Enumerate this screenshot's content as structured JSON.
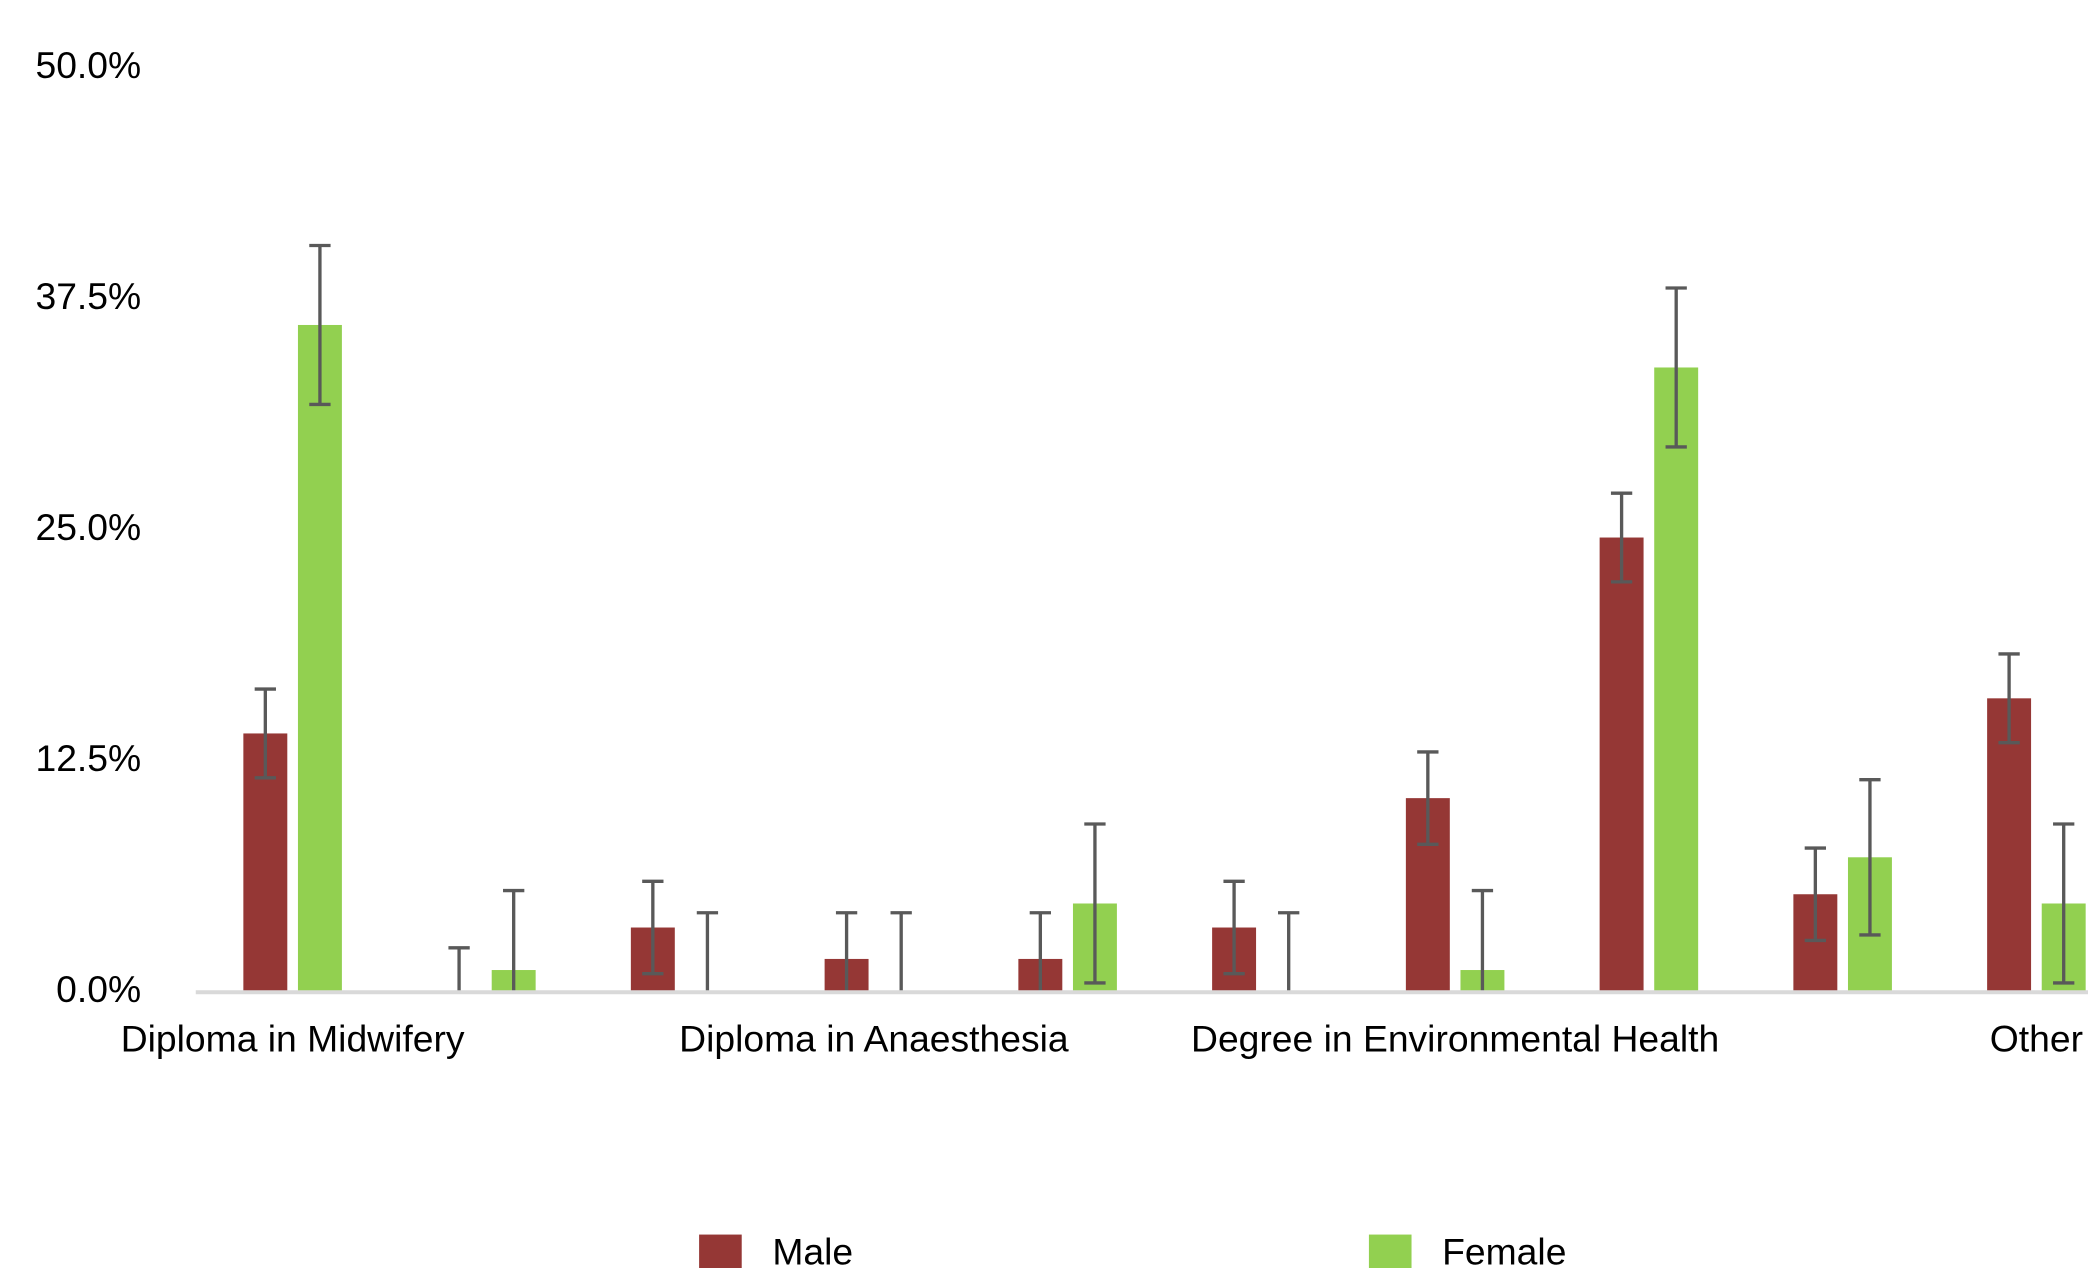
{
  "chart_data": {
    "type": "bar",
    "categories": [
      "Diploma in Midwifery",
      null,
      null,
      "Diploma in Anaesthesia",
      null,
      null,
      "Degree in Environmental Health",
      null,
      null,
      "Other"
    ],
    "series": [
      {
        "name": "Male",
        "color": "#953735",
        "values": [
          14.0,
          0,
          3.5,
          1.8,
          1.8,
          3.5,
          10.5,
          24.6,
          5.3,
          15.9
        ],
        "errors": [
          2.4,
          2.4,
          2.5,
          2.5,
          2.5,
          2.5,
          2.5,
          2.4,
          2.5,
          2.4
        ]
      },
      {
        "name": "Female",
        "color": "#92d050",
        "values": [
          36.1,
          1.2,
          0,
          0,
          4.8,
          0,
          1.2,
          33.8,
          7.3,
          4.8
        ],
        "errors": [
          4.3,
          4.3,
          4.3,
          4.3,
          4.3,
          4.3,
          4.3,
          4.3,
          4.2,
          4.3
        ]
      }
    ],
    "ylim": [
      0,
      50
    ],
    "yticks": [
      {
        "value": 0,
        "label": "0.0%"
      },
      {
        "value": 12.5,
        "label": "12.5%"
      },
      {
        "value": 25,
        "label": "25.0%"
      },
      {
        "value": 37.5,
        "label": "37.5%"
      },
      {
        "value": 50,
        "label": "50.0%"
      }
    ],
    "grid": false,
    "legend": "bottom"
  }
}
